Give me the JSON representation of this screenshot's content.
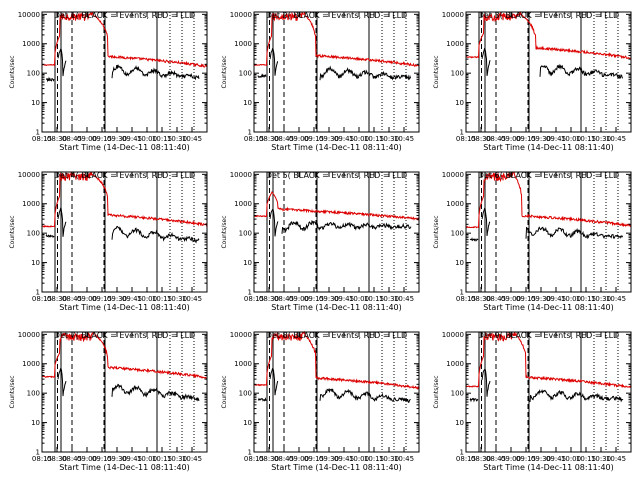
{
  "chart_data": [
    {
      "type": "line",
      "detector": 1,
      "title": "Det 1( BLACK = Events, RED = LLD",
      "panel": 0
    },
    {
      "type": "line",
      "detector": 2,
      "title": "Det 2( BLACK = Events, RED = LLD",
      "panel": 1
    },
    {
      "type": "line",
      "detector": 3,
      "title": "Det 3( BLACK = Events, RED = LLD",
      "panel": 2
    },
    {
      "type": "line",
      "detector": 4,
      "title": "Det 4( BLACK = Events, RED = LLD",
      "panel": 3
    },
    {
      "type": "line",
      "detector": 5,
      "title": "Det 5( BLACK = Events, RED = LLD",
      "panel": 4
    },
    {
      "type": "line",
      "detector": 6,
      "title": "Det 6( BLACK = Events, RED = LLD",
      "panel": 5
    },
    {
      "type": "line",
      "detector": 7,
      "title": "Det 7( BLACK = Events, RED = LLD",
      "panel": 6
    },
    {
      "type": "line",
      "detector": 8,
      "title": "Det 8( BLACK = Events, RED = LLD",
      "panel": 7
    },
    {
      "type": "line",
      "detector": 9,
      "title": "Det 9( BLACK = Events, RED = LLD",
      "panel": 8
    }
  ],
  "shared": {
    "xlabel": "Start Time (14-Dec-11 08:11:40)",
    "ylabel": "Counts/sec",
    "x_ticks": [
      "08:15",
      "08:30",
      "08:45",
      "09:00",
      "09:15",
      "09:30",
      "09:45",
      "10:00",
      "10:15",
      "10:30",
      "10:45"
    ],
    "x_range_minutes": [
      0,
      165
    ],
    "y_scale": "log",
    "y_range": [
      1,
      12000
    ],
    "y_ticks": [
      "1",
      "10",
      "100",
      "1000",
      "10000"
    ],
    "grid": false,
    "series": [
      {
        "name": "Events",
        "color": "#000000"
      },
      {
        "name": "LLD",
        "color": "#dd0000"
      }
    ]
  },
  "colors": {
    "events": "#000000",
    "lld": "#dd0000",
    "axes": "#000000"
  }
}
